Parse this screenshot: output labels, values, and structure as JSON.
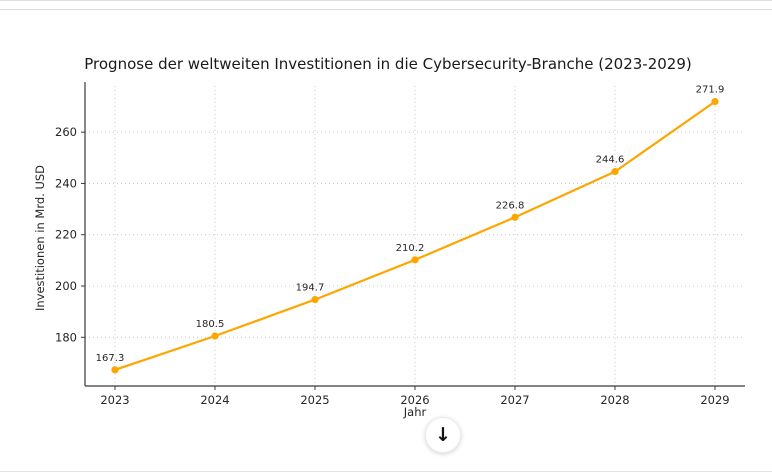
{
  "chart_data": {
    "type": "line",
    "title": "Prognose der weltweiten Investitionen in die Cybersecurity-Branche (2023-2029)",
    "xlabel": "Jahr",
    "ylabel": "Investitionen in Mrd. USD",
    "x": [
      2023,
      2024,
      2025,
      2026,
      2027,
      2028,
      2029
    ],
    "values": [
      167.3,
      180.5,
      194.7,
      210.2,
      226.8,
      244.6,
      271.9
    ],
    "yticks": [
      180,
      200,
      220,
      240,
      260
    ],
    "ylim": [
      161,
      278
    ],
    "grid": true,
    "legend": "none",
    "line_color": "#FFA500",
    "marker_color": "#FFA500",
    "grid_color": "#cccccc",
    "spine_color": "#3a3a3a",
    "tick_text_color": "#262626",
    "label_text_color": "#262626"
  },
  "overlay": {
    "scroll_down_glyph": "↓"
  }
}
